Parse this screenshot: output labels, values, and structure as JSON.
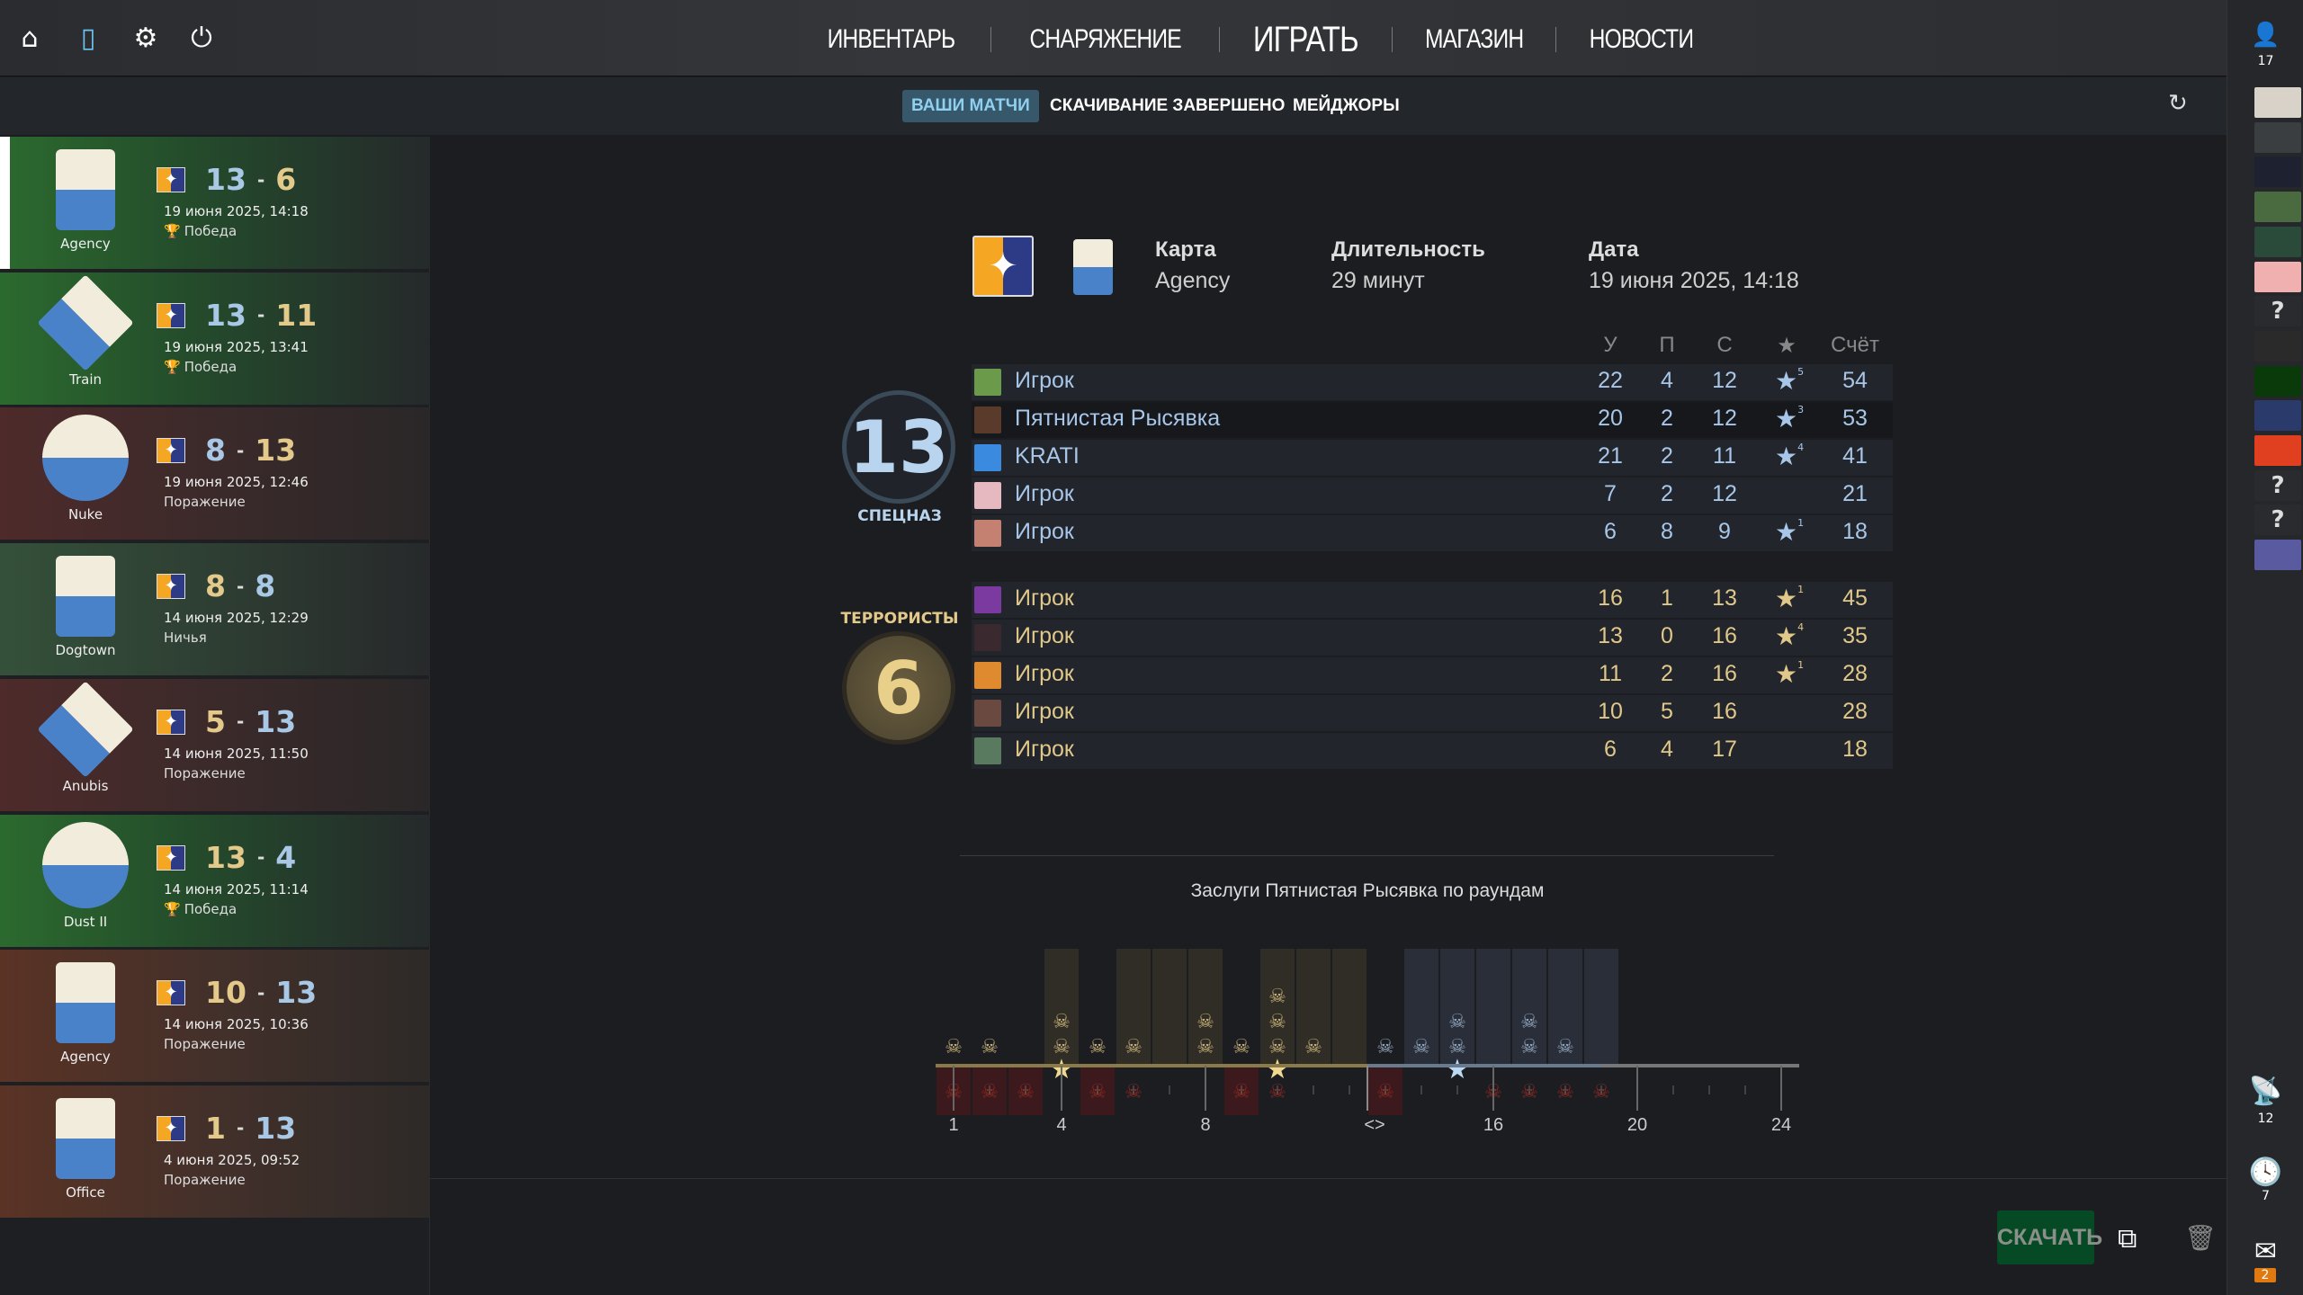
{
  "topbar": {
    "icons": [
      "home-icon",
      "tv-icon",
      "gear-icon",
      "power-icon"
    ],
    "nav": [
      "ИНВЕНТАРЬ",
      "СНАРЯЖЕНИЕ",
      "ИГРАТЬ",
      "МАГАЗИН",
      "НОВОСТИ"
    ],
    "active": "ИГРАТЬ"
  },
  "subtabs": [
    "ВАШИ МАТЧИ",
    "СКАЧИВАНИЕ ЗАВЕРШЕНО",
    "МЕЙДЖОРЫ"
  ],
  "colors": {
    "ct": "#a9c8e6",
    "t": "#e3c98a",
    "win": "#2b6a2e",
    "loss": "#4e2a2a",
    "download": "#054a25"
  },
  "matches": [
    {
      "map": "Agency",
      "logo": "AGENCY MAP",
      "score_left": "13",
      "score_right": "6",
      "left_side": "ct",
      "date": "19 июня 2025, 14:18",
      "result": "Победа",
      "outcome": "win",
      "selected": true
    },
    {
      "map": "Train",
      "logo": "TRAIN",
      "score_left": "13",
      "score_right": "11",
      "left_side": "ct",
      "date": "19 июня 2025, 13:41",
      "result": "Победа",
      "outcome": "win"
    },
    {
      "map": "Nuke",
      "logo": "NUKE",
      "score_left": "8",
      "score_right": "13",
      "left_side": "ct",
      "date": "19 июня 2025, 12:46",
      "result": "Поражение",
      "outcome": "loss"
    },
    {
      "map": "Dogtown",
      "logo": "DOGTOWN MAP",
      "score_left": "8",
      "score_right": "8",
      "left_side": "t",
      "date": "14 июня 2025, 12:29",
      "result": "Ничья",
      "outcome": "draw"
    },
    {
      "map": "Anubis",
      "logo": "ANUBIS",
      "score_left": "5",
      "score_right": "13",
      "left_side": "t",
      "date": "14 июня 2025, 11:50",
      "result": "Поражение",
      "outcome": "loss"
    },
    {
      "map": "Dust II",
      "logo": "DUST II",
      "score_left": "13",
      "score_right": "4",
      "left_side": "t",
      "date": "14 июня 2025, 11:14",
      "result": "Победа",
      "outcome": "win"
    },
    {
      "map": "Agency",
      "logo": "AGENCY MAP",
      "score_left": "10",
      "score_right": "13",
      "left_side": "t",
      "date": "14 июня 2025, 10:36",
      "result": "Поражение",
      "outcome": "loss2"
    },
    {
      "map": "Office",
      "logo": "52375 OFFICE",
      "score_left": "1",
      "score_right": "13",
      "left_side": "t",
      "date": "4 июня 2025, 09:52",
      "result": "Поражение",
      "outcome": "loss2"
    }
  ],
  "detail": {
    "map_label": "Карта",
    "map": "Agency",
    "duration_label": "Длительность",
    "duration": "29 минут",
    "date_label": "Дата",
    "date": "19 июня 2025, 14:18"
  },
  "scoreboard": {
    "columns": [
      "У",
      "П",
      "С",
      "★",
      "Счёт"
    ],
    "ct": {
      "name": "СПЕЦНАЗ",
      "score": "13",
      "players": [
        {
          "name": "Игрок",
          "k": "22",
          "a": "4",
          "d": "12",
          "mvp": "5",
          "score": "54",
          "color": "#6a9a4a"
        },
        {
          "name": "Пятнистая Рысявка",
          "k": "20",
          "a": "2",
          "d": "12",
          "mvp": "3",
          "score": "53",
          "color": "#5a3a2a",
          "highlight": true
        },
        {
          "name": "KRATI",
          "k": "21",
          "a": "2",
          "d": "11",
          "mvp": "4",
          "score": "41",
          "color": "#3a8ae0"
        },
        {
          "name": "Игрок",
          "k": "7",
          "a": "2",
          "d": "12",
          "mvp": "",
          "score": "21",
          "color": "#e6b8c0"
        },
        {
          "name": "Игрок",
          "k": "6",
          "a": "8",
          "d": "9",
          "mvp": "1",
          "score": "18",
          "color": "#c48070"
        }
      ]
    },
    "t": {
      "name": "ТЕРРОРИСТЫ",
      "score": "6",
      "players": [
        {
          "name": "Игрок",
          "k": "16",
          "a": "1",
          "d": "13",
          "mvp": "1",
          "score": "45",
          "color": "#7a3aa0"
        },
        {
          "name": "Игрок",
          "k": "13",
          "a": "0",
          "d": "16",
          "mvp": "4",
          "score": "35",
          "color": "#3a2a30"
        },
        {
          "name": "Игрок",
          "k": "11",
          "a": "2",
          "d": "16",
          "mvp": "1",
          "score": "28",
          "color": "#e08a30"
        },
        {
          "name": "Игрок",
          "k": "10",
          "a": "5",
          "d": "16",
          "mvp": "",
          "score": "28",
          "color": "#6a4a40"
        },
        {
          "name": "Игрок",
          "k": "6",
          "a": "4",
          "d": "17",
          "mvp": "",
          "score": "18",
          "color": "#5a7a60"
        }
      ]
    }
  },
  "chart_data": {
    "type": "bar",
    "title": "Заслуги Пятнистая Рысявка по раундам",
    "categories": [
      1,
      2,
      3,
      4,
      5,
      6,
      7,
      8,
      9,
      10,
      11,
      12,
      13,
      14,
      15,
      16,
      17,
      18,
      19
    ],
    "series": [
      {
        "values": [
          1,
          1,
          0,
          2,
          1,
          1,
          0,
          2,
          1,
          3,
          1,
          0,
          1,
          1,
          2,
          0,
          2,
          1,
          0
        ]
      }
    ],
    "mvp_rounds": [
      4,
      10,
      15
    ],
    "lost_rounds": [
      1,
      2,
      3,
      5,
      9,
      13
    ],
    "death_rounds": [
      1,
      2,
      3,
      5,
      6,
      9,
      10,
      13,
      16,
      17,
      18,
      19
    ],
    "side_first_half": "t",
    "side_second_half": "ct",
    "x_ticks": [
      "1",
      "4",
      "8",
      "<>",
      "16",
      "20",
      "24"
    ],
    "xlim": [
      1,
      24
    ]
  },
  "actions": {
    "download": "СКАЧАТЬ"
  },
  "friends": {
    "count": "17",
    "avatars": [
      "#d8d2c8",
      "#3a3e40",
      "#1e2230",
      "#4a6a40",
      "#2a4a3a",
      "#f0b0b0",
      "?",
      "#2a2a2a",
      "#0a3a0a",
      "#2a3a6a",
      "#e04020",
      "?",
      "?",
      "#5a5aa0"
    ],
    "broadcast": "12",
    "history": "7",
    "mail": "2"
  }
}
